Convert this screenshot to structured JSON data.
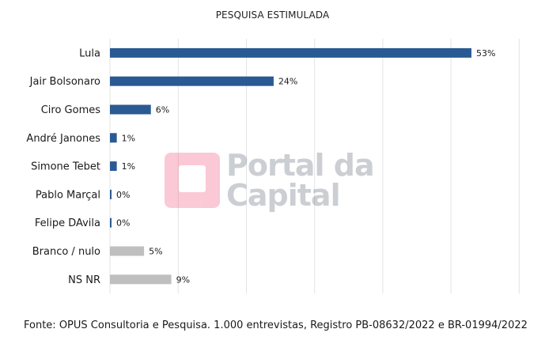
{
  "title": "PESQUISA ESTIMULADA",
  "source": "Fonte: OPUS Consultoria e Pesquisa. 1.000 entrevistas, Registro PB-08632/2022 e BR-01994/2022",
  "watermark": {
    "line1": "Portal da",
    "line2": "Capital"
  },
  "colors": {
    "candidate": "#2a5a93",
    "other": "#bfbfbf",
    "grid": "#e3e3e3"
  },
  "chart_data": {
    "type": "bar",
    "orientation": "horizontal",
    "title": "PESQUISA ESTIMULADA",
    "categories": [
      "Lula",
      "Jair Bolsonaro",
      "Ciro Gomes",
      "André Janones",
      "Simone Tebet",
      "Pablo Marçal",
      "Felipe DAvila",
      "Branco / nulo",
      "NS NR"
    ],
    "values": [
      53,
      24,
      6,
      1,
      1,
      0,
      0,
      5,
      9
    ],
    "value_labels": [
      "53%",
      "24%",
      "6%",
      "1%",
      "1%",
      "0%",
      "0%",
      "5%",
      "9%"
    ],
    "bar_groups": [
      "candidate",
      "candidate",
      "candidate",
      "candidate",
      "candidate",
      "candidate",
      "candidate",
      "other",
      "other"
    ],
    "xlim": [
      0,
      60
    ],
    "grid": true
  }
}
